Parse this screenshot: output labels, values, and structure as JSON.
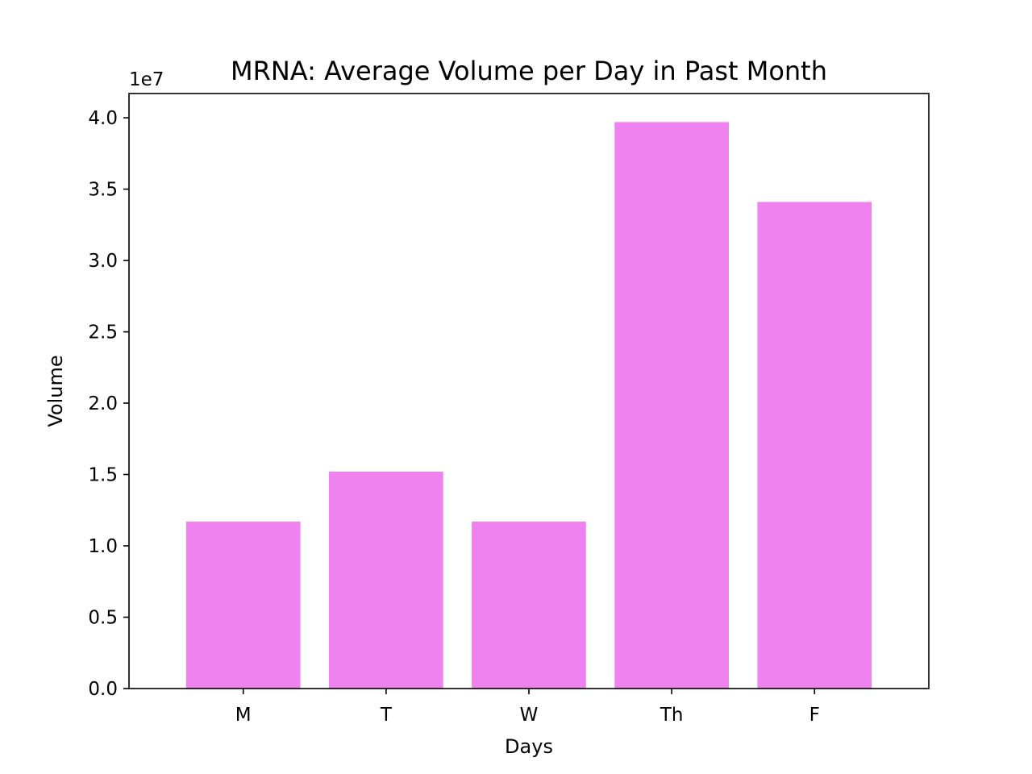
{
  "chart_data": {
    "type": "bar",
    "title": "MRNA: Average Volume per Day in Past Month",
    "xlabel": "Days",
    "ylabel": "Volume",
    "y_offset_label": "1e7",
    "categories": [
      "M",
      "T",
      "W",
      "Th",
      "F"
    ],
    "values": [
      11700000,
      15200000,
      11700000,
      39700000,
      34100000
    ],
    "ylim": [
      0,
      41700000
    ],
    "yticks": [
      0,
      5000000,
      10000000,
      15000000,
      20000000,
      25000000,
      30000000,
      35000000,
      40000000
    ],
    "ytick_labels": [
      "0.0",
      "0.5",
      "1.0",
      "1.5",
      "2.0",
      "2.5",
      "3.0",
      "3.5",
      "4.0"
    ],
    "bar_color": "#ee82ee",
    "grid": false,
    "legend": "none"
  }
}
